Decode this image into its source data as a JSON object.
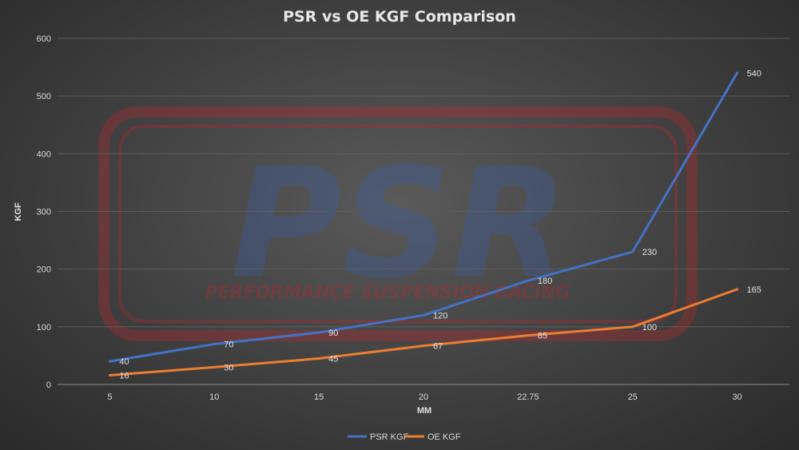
{
  "chart_data": {
    "type": "line",
    "title": "PSR vs OE KGF Comparison",
    "xlabel": "MM",
    "ylabel": "KGF",
    "categories": [
      "5",
      "10",
      "15",
      "20",
      "22.75",
      "25",
      "30"
    ],
    "ylim": [
      0,
      600
    ],
    "yticks": [
      "0",
      "100",
      "200",
      "300",
      "400",
      "500",
      "600"
    ],
    "grid": true,
    "legend_position": "bottom",
    "series": [
      {
        "name": "PSR KGF",
        "color": "#4472c4",
        "values": [
          40,
          70,
          90,
          120,
          180,
          230,
          540
        ],
        "labels": [
          "40",
          "70",
          "90",
          "120",
          "180",
          "230",
          "540"
        ]
      },
      {
        "name": "OE KGF",
        "color": "#ed7d31",
        "values": [
          16,
          30,
          45,
          67,
          85,
          100,
          165
        ],
        "labels": [
          "16",
          "30",
          "45",
          "67",
          "85",
          "100",
          "165"
        ]
      }
    ]
  },
  "watermark": {
    "logo_text": "PSR",
    "tagline": "PERFORMANCE SUSPENSION RACING",
    "colors": {
      "border": "#c0282d",
      "logo": "#3a5fa8"
    }
  }
}
